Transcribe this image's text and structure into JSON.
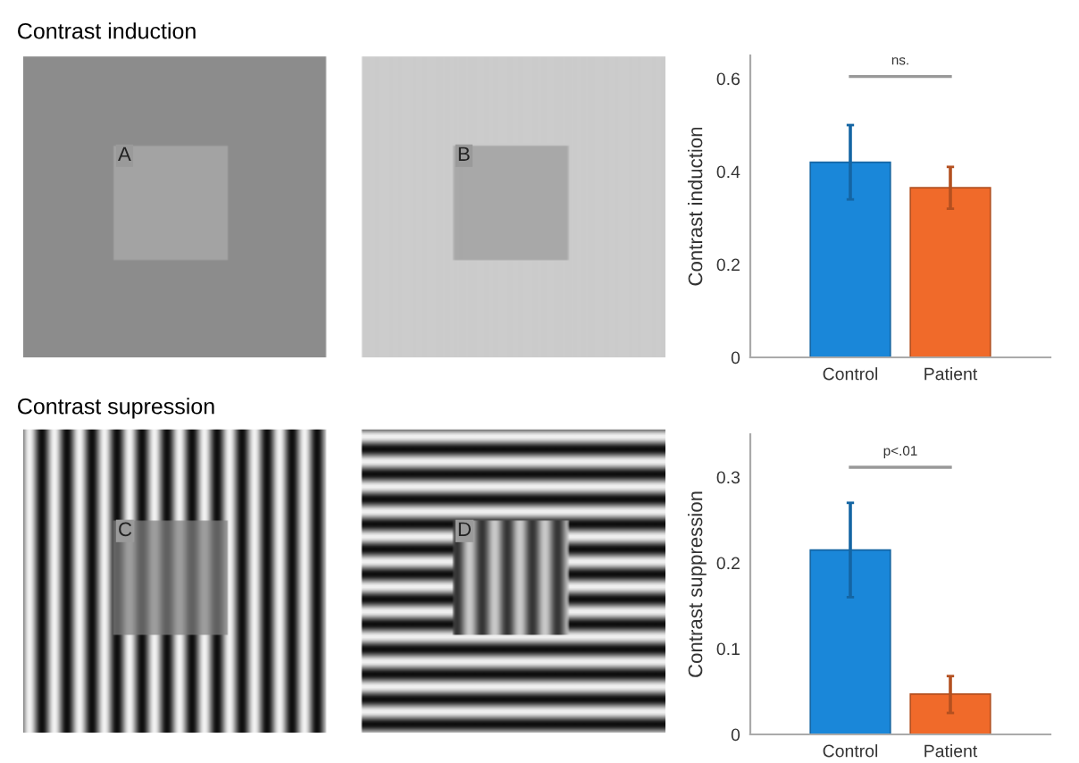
{
  "chart_data": [
    {
      "type": "other",
      "title": "Contrast induction",
      "annotations": [
        "A",
        "B"
      ]
    },
    {
      "type": "bar",
      "ylabel": "Contrast induction",
      "categories": [
        "Control",
        "Patient"
      ],
      "values": [
        0.42,
        0.365
      ],
      "colors": [
        "#1a87d9",
        "#f06a2a"
      ],
      "errors": [
        [
          0.34,
          0.5
        ],
        [
          0.32,
          0.41
        ]
      ],
      "ylim": [
        0,
        0.65
      ],
      "yticks": [
        0,
        0.2,
        0.4,
        0.6
      ],
      "annotations": [
        "ns."
      ]
    },
    {
      "type": "other",
      "title": "Contrast supression",
      "annotations": [
        "C",
        "D"
      ]
    },
    {
      "type": "bar",
      "ylabel": "Contrast suppression",
      "categories": [
        "Control",
        "Patient"
      ],
      "values": [
        0.215,
        0.047
      ],
      "colors": [
        "#1a87d9",
        "#f06a2a"
      ],
      "errors": [
        [
          0.16,
          0.27
        ],
        [
          0.025,
          0.068
        ]
      ],
      "ylim": [
        0,
        0.35
      ],
      "yticks": [
        0,
        0.1,
        0.2,
        0.3
      ],
      "annotations": [
        "p<.01"
      ]
    }
  ]
}
